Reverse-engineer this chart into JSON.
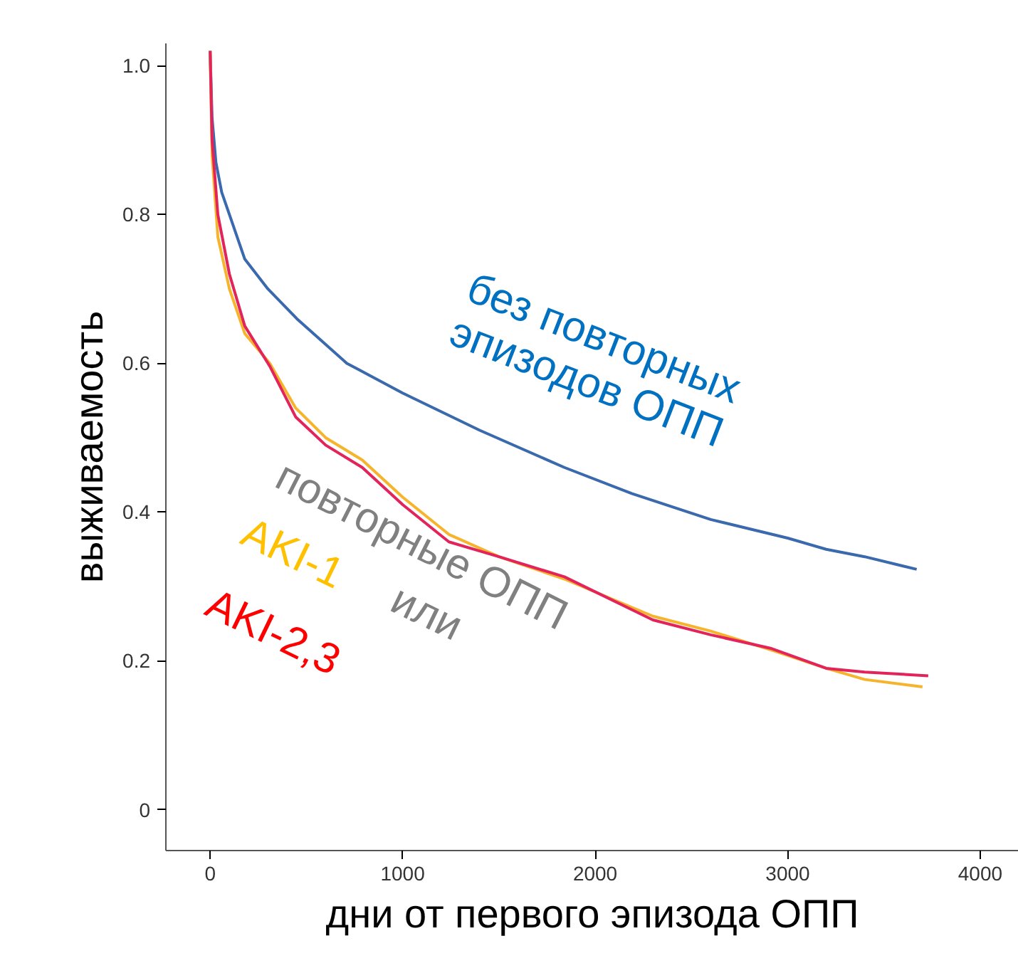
{
  "chart_data": {
    "type": "line",
    "xlabel": "дни от первого эпизода ОПП",
    "ylabel": "выживаемость",
    "xlim": [
      -230,
      4200
    ],
    "ylim": [
      -0.055,
      1.03
    ],
    "xticks": [
      0,
      1000,
      2000,
      3000,
      4000
    ],
    "yticks": [
      0,
      0.2,
      0.4,
      0.6,
      0.8,
      {
        "value": 1.0,
        "label": "1.0"
      }
    ],
    "grid": false,
    "series": [
      {
        "name": "без повторных эпизодов ОПП",
        "color": "#3a6aad",
        "x": [
          0,
          10,
          30,
          60,
          100,
          180,
          300,
          450,
          710,
          1000,
          1400,
          1840,
          2190,
          2600,
          3000,
          3200,
          3400,
          3670
        ],
        "values": [
          1.02,
          0.93,
          0.87,
          0.83,
          0.8,
          0.74,
          0.7,
          0.66,
          0.6,
          0.56,
          0.51,
          0.46,
          0.425,
          0.39,
          0.365,
          0.35,
          0.34,
          0.323
        ]
      },
      {
        "name": "AKI-1",
        "color": "#f6b42c",
        "x": [
          0,
          10,
          40,
          100,
          180,
          310,
          444,
          600,
          790,
          1000,
          1240,
          1500,
          1840,
          2300,
          2600,
          2910,
          3200,
          3400,
          3700
        ],
        "values": [
          1.02,
          0.88,
          0.77,
          0.7,
          0.64,
          0.6,
          0.54,
          0.5,
          0.47,
          0.42,
          0.37,
          0.34,
          0.31,
          0.26,
          0.24,
          0.215,
          0.19,
          0.175,
          0.165
        ]
      },
      {
        "name": "AKI-2,3",
        "color": "#e2245a",
        "x": [
          0,
          10,
          40,
          100,
          180,
          310,
          444,
          600,
          790,
          1000,
          1240,
          1500,
          1840,
          2300,
          2600,
          2910,
          3200,
          3400,
          3730
        ],
        "values": [
          1.02,
          0.9,
          0.8,
          0.72,
          0.65,
          0.596,
          0.528,
          0.49,
          0.46,
          0.41,
          0.36,
          0.34,
          0.313,
          0.255,
          0.235,
          0.217,
          0.19,
          0.185,
          0.18
        ]
      }
    ],
    "annotations": [
      "повторные ОПП",
      "или"
    ]
  }
}
